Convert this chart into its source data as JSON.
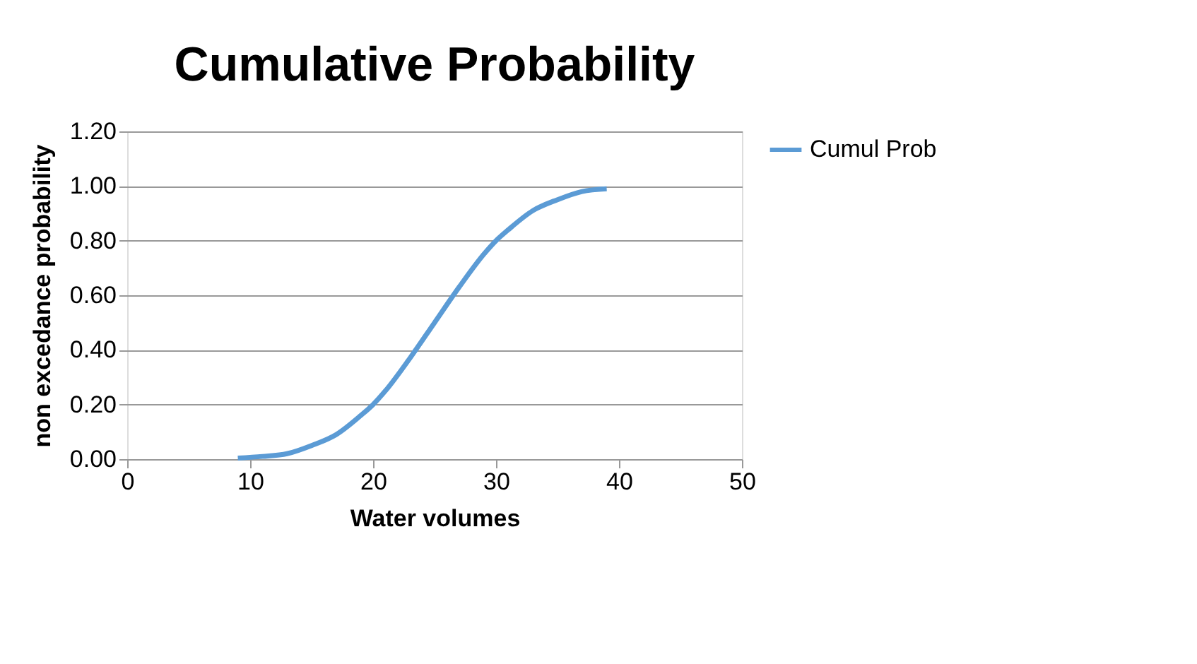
{
  "chart_data": {
    "type": "line",
    "title": "Cumulative Probability",
    "xlabel": "Water volumes",
    "ylabel": "non excedance probability",
    "x": [
      9,
      11,
      13,
      15,
      17,
      19,
      20,
      21,
      23,
      25,
      27,
      29,
      30,
      31,
      33,
      35,
      37,
      39
    ],
    "series": [
      {
        "name": "Cumul Prob",
        "color": "#5b9bd5",
        "values": [
          0.004,
          0.01,
          0.02,
          0.05,
          0.09,
          0.16,
          0.2,
          0.25,
          0.37,
          0.5,
          0.63,
          0.75,
          0.8,
          0.84,
          0.91,
          0.95,
          0.98,
          0.99
        ]
      }
    ],
    "xlim": [
      0,
      50
    ],
    "xticks": [
      0,
      10,
      20,
      30,
      40,
      50
    ],
    "ylim": [
      0,
      1.2
    ],
    "yticks": [
      {
        "value": 0,
        "label": "0.00"
      },
      {
        "value": 0.2,
        "label": "0.20"
      },
      {
        "value": 0.4,
        "label": "0.40"
      },
      {
        "value": 0.6,
        "label": "0.60"
      },
      {
        "value": 0.8,
        "label": "0.80"
      },
      {
        "value": 1.0,
        "label": "1.00"
      },
      {
        "value": 1.2,
        "label": "1.20"
      }
    ],
    "grid": "y",
    "legend": "right",
    "marker": "none",
    "line_style": "solid"
  }
}
